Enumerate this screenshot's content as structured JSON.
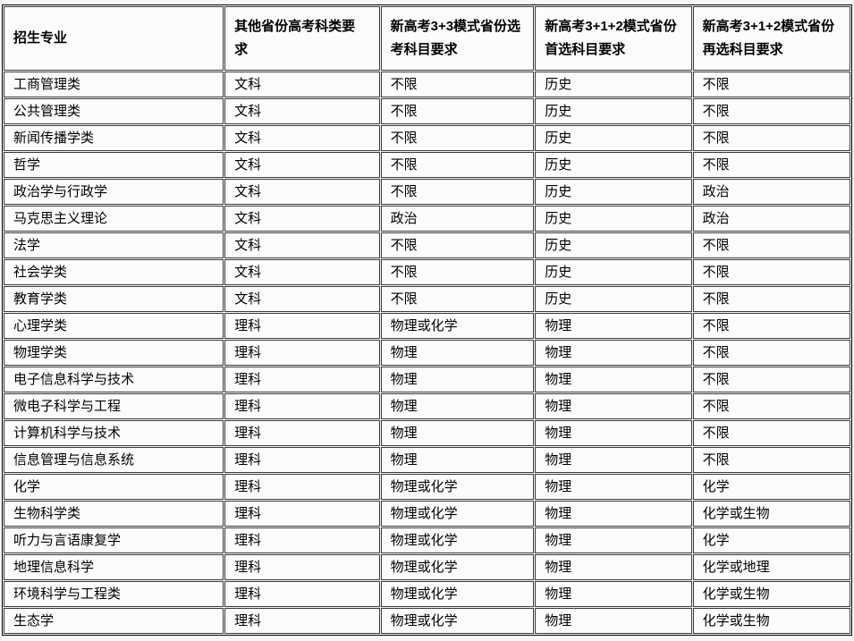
{
  "table": {
    "headers": [
      "招生专业",
      "其他省份高考科类要求",
      "新高考3+3模式省份选考科目要求",
      "新高考3+1+2模式省份首选科目要求",
      "新高考3+1+2模式省份再选科目要求"
    ],
    "rows": [
      [
        "工商管理类",
        "文科",
        "不限",
        "历史",
        "不限"
      ],
      [
        "公共管理类",
        "文科",
        "不限",
        "历史",
        "不限"
      ],
      [
        "新闻传播学类",
        "文科",
        "不限",
        "历史",
        "不限"
      ],
      [
        "哲学",
        "文科",
        "不限",
        "历史",
        "不限"
      ],
      [
        "政治学与行政学",
        "文科",
        "不限",
        "历史",
        "政治"
      ],
      [
        "马克思主义理论",
        "文科",
        "政治",
        "历史",
        "政治"
      ],
      [
        "法学",
        "文科",
        "不限",
        "历史",
        "不限"
      ],
      [
        "社会学类",
        "文科",
        "不限",
        "历史",
        "不限"
      ],
      [
        "教育学类",
        "文科",
        "不限",
        "历史",
        "不限"
      ],
      [
        "心理学类",
        "理科",
        "物理或化学",
        "物理",
        "不限"
      ],
      [
        "物理学类",
        "理科",
        "物理",
        "物理",
        "不限"
      ],
      [
        "电子信息科学与技术",
        "理科",
        "物理",
        "物理",
        "不限"
      ],
      [
        "微电子科学与工程",
        "理科",
        "物理",
        "物理",
        "不限"
      ],
      [
        "计算机科学与技术",
        "理科",
        "物理",
        "物理",
        "不限"
      ],
      [
        "信息管理与信息系统",
        "理科",
        "物理",
        "物理",
        "不限"
      ],
      [
        "化学",
        "理科",
        "物理或化学",
        "物理",
        "化学"
      ],
      [
        "生物科学类",
        "理科",
        "物理或化学",
        "物理",
        "化学或生物"
      ],
      [
        "听力与言语康复学",
        "理科",
        "物理或化学",
        "物理",
        "化学"
      ],
      [
        "地理信息科学",
        "理科",
        "物理或化学",
        "物理",
        "化学或地理"
      ],
      [
        "环境科学与工程类",
        "理科",
        "物理或化学",
        "物理",
        "化学或生物"
      ],
      [
        "生态学",
        "理科",
        "物理或化学",
        "物理",
        "化学或生物"
      ]
    ]
  },
  "colors": {
    "bg": "#f8f8f8",
    "cell-bg": "#fcfcfc",
    "border": "#3a3a3a",
    "outer": "#000000",
    "text": "#000000"
  }
}
